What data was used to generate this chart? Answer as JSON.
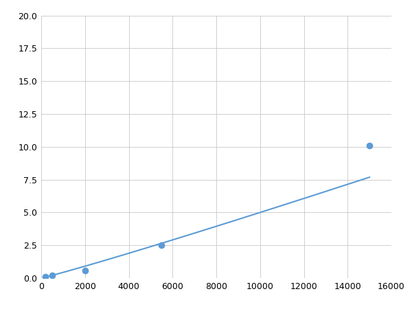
{
  "x": [
    200,
    500,
    2000,
    5500,
    15000
  ],
  "y": [
    0.1,
    0.2,
    0.6,
    2.5,
    10.1
  ],
  "line_color": "#5b9bd5",
  "marker_color": "#5b9bd5",
  "marker_size": 7,
  "xlim": [
    0,
    16000
  ],
  "ylim": [
    0,
    20.0
  ],
  "xticks": [
    0,
    2000,
    4000,
    6000,
    8000,
    10000,
    12000,
    14000,
    16000
  ],
  "yticks": [
    0.0,
    2.5,
    5.0,
    7.5,
    10.0,
    12.5,
    15.0,
    17.5,
    20.0
  ],
  "grid": true,
  "background_color": "#ffffff",
  "figsize": [
    6.0,
    4.5
  ],
  "dpi": 100
}
